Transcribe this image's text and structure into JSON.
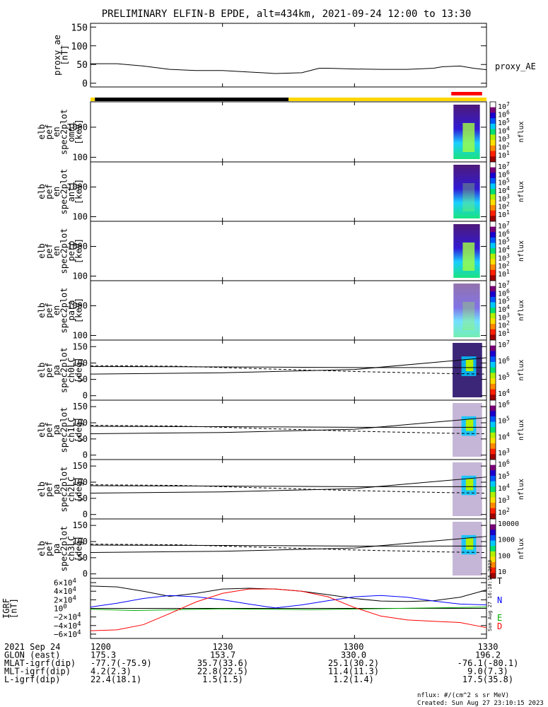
{
  "title": "PRELIMINARY ELFIN-B EPDE, alt=434km, 2021-09-24 12:00 to 13:30",
  "chart_data": {
    "type": "multi-panel",
    "time_range": [
      "1200",
      "1330"
    ],
    "x_tick_labels": [
      "1200",
      "1230",
      "1300",
      "1330"
    ],
    "x_tick_minutes": [
      0,
      30,
      60,
      90
    ],
    "panels": [
      {
        "kind": "line",
        "ylabel": [
          "proxy_ae",
          "[nT]"
        ],
        "ylim": [
          -10,
          160
        ],
        "yticks": [
          0,
          50,
          100,
          150
        ],
        "series": [
          {
            "name": "proxy_AE",
            "color": "#000000",
            "x": [
              0,
              6,
              12,
              18,
              24,
              30,
              36,
              42,
              48,
              52,
              54,
              60,
              66,
              72,
              78,
              80,
              84,
              87,
              90
            ],
            "y": [
              52,
              52,
              46,
              37,
              34,
              34,
              30,
              26,
              28,
              40,
              40,
              38,
              37,
              37,
              40,
              44,
              46,
              40,
              36
            ]
          }
        ]
      },
      {
        "kind": "spec",
        "ylabel": [
          "elb",
          "pef",
          "en",
          "spec2plot",
          "omni",
          "[keV]"
        ],
        "yticks": [
          "1000",
          "100"
        ],
        "cb_ticks": [
          "7",
          "6",
          "5",
          "4",
          "3",
          "2",
          "1"
        ],
        "cb_title": "nflux"
      },
      {
        "kind": "spec",
        "ylabel": [
          "elb",
          "pef",
          "en",
          "spec2plot",
          "anti",
          "[keV]"
        ],
        "yticks": [
          "1000",
          "100"
        ],
        "cb_ticks": [
          "7",
          "6",
          "5",
          "4",
          "3",
          "2",
          "1"
        ],
        "cb_title": "nflux"
      },
      {
        "kind": "spec",
        "ylabel": [
          "elb",
          "pef",
          "en",
          "spec2plot",
          "perp",
          "[keV]"
        ],
        "yticks": [
          "1000",
          "100"
        ],
        "cb_ticks": [
          "7",
          "6",
          "5",
          "4",
          "3",
          "2",
          "1"
        ],
        "cb_title": "nflux"
      },
      {
        "kind": "spec",
        "ylabel": [
          "elb",
          "pef",
          "en",
          "spec2plot",
          "para",
          "[keV]"
        ],
        "yticks": [
          "1000",
          "100"
        ],
        "cb_ticks": [
          "7",
          "6",
          "5",
          "4",
          "3",
          "2",
          "1"
        ],
        "cb_title": "nflux"
      },
      {
        "kind": "pa",
        "ylabel": [
          "elb",
          "pef",
          "pa",
          "spec2plot",
          "ch0LC",
          "[deg]"
        ],
        "yticks": [
          "150",
          "100",
          "50",
          "0"
        ],
        "cb_ticks": [
          "10^7",
          "10^6",
          "10^5",
          "10^4"
        ],
        "cb_title": "nflux"
      },
      {
        "kind": "pa",
        "ylabel": [
          "elb",
          "pef",
          "pa",
          "spec2plot",
          "ch1LC",
          "[deg]"
        ],
        "yticks": [
          "150",
          "100",
          "50",
          "0"
        ],
        "cb_ticks": [
          "10^6",
          "10^5",
          "10^4",
          "10^3"
        ],
        "cb_title": "nflux"
      },
      {
        "kind": "pa",
        "ylabel": [
          "elb",
          "pef",
          "pa",
          "spec2plot",
          "ch2LC",
          "[deg]"
        ],
        "yticks": [
          "150",
          "100",
          "50",
          "0"
        ],
        "cb_ticks": [
          "10^6",
          "10^5",
          "10^4",
          "10^3",
          "10^2"
        ],
        "cb_title": "nflux"
      },
      {
        "kind": "pa",
        "ylabel": [
          "elb",
          "pef",
          "pa",
          "spec2plot",
          "ch3LC",
          "[deg]"
        ],
        "yticks": [
          "150",
          "100",
          "50",
          "0"
        ],
        "cb_ticks": [
          "10000",
          "1000",
          "100",
          "10"
        ],
        "cb_title": "nflux"
      },
      {
        "kind": "line",
        "ylabel": [
          "IGRF",
          "[nT]"
        ],
        "ylim": [
          -70000,
          70000
        ],
        "yticks": [
          "6×10^4",
          "4×10^4",
          "2×10^4",
          "0",
          "−2×10^4",
          "−4×10^4",
          "−6×10^4"
        ],
        "ytick_values": [
          60000,
          40000,
          20000,
          0,
          -20000,
          -40000,
          -60000
        ],
        "series": [
          {
            "name": "T",
            "color": "#000000",
            "x": [
              0,
              6,
              12,
              18,
              24,
              30,
              36,
              42,
              48,
              54,
              60,
              66,
              72,
              78,
              84,
              90
            ],
            "y": [
              52000,
              50000,
              40000,
              28000,
              35000,
              45000,
              47000,
              45000,
              40000,
              32000,
              23000,
              17000,
              16000,
              18000,
              26000,
              43000
            ]
          },
          {
            "name": "N",
            "color": "#0000ff",
            "x": [
              0,
              6,
              12,
              18,
              24,
              30,
              36,
              42,
              48,
              54,
              60,
              66,
              72,
              78,
              84,
              90
            ],
            "y": [
              3000,
              12000,
              23000,
              30000,
              27000,
              20000,
              10000,
              1000,
              8000,
              18000,
              27000,
              30000,
              26000,
              17000,
              10000,
              8000
            ]
          },
          {
            "name": "E",
            "color": "#00aa00",
            "x": [
              0,
              10,
              20,
              30,
              40,
              50,
              60,
              70,
              80,
              90
            ],
            "y": [
              -2000,
              -5000,
              -3000,
              -1000,
              -2000,
              -3000,
              -1500,
              0,
              1500,
              3000
            ]
          },
          {
            "name": "D",
            "color": "#ff0000",
            "x": [
              0,
              6,
              12,
              18,
              24,
              30,
              36,
              42,
              48,
              54,
              60,
              66,
              72,
              78,
              84,
              90
            ],
            "y": [
              -52000,
              -50000,
              -38000,
              -12000,
              15000,
              35000,
              45000,
              45000,
              40000,
              27000,
              2000,
              -18000,
              -27000,
              -30000,
              -33000,
              -45000
            ]
          }
        ],
        "legend": [
          "T",
          "N",
          "E",
          "D"
        ]
      }
    ],
    "orbit_bar": {
      "segments": [
        {
          "from": 0,
          "to": 1,
          "color": "#ffd700"
        },
        {
          "from": 1,
          "to": 45,
          "color": "#000000"
        },
        {
          "from": 45,
          "to": 90,
          "color": "#ffd700"
        }
      ],
      "science_zone": {
        "from": 82,
        "to": 89,
        "color": "#ff0000"
      }
    },
    "colorbar_colors": [
      "#ffffff",
      "#7a007a",
      "#1a00d0",
      "#0055ff",
      "#00c8ff",
      "#00e070",
      "#b0f000",
      "#ffe000",
      "#ff8800",
      "#ff2000",
      "#a00000"
    ]
  },
  "orbit_table": {
    "rows": [
      {
        "label": "2021 Sep 24",
        "values": [
          "1200",
          "1230",
          "1300",
          "1330"
        ]
      },
      {
        "label": "GLON (east)",
        "values": [
          "175.3",
          "153.7",
          "330.0",
          "196.2"
        ]
      },
      {
        "label": "MLAT-igrf(dip)",
        "values": [
          "-77.7(-75.9)",
          "35.7(33.6)",
          "25.1(30.2)",
          "-76.1(-80.1)"
        ]
      },
      {
        "label": "MLT-igrf(dip)",
        "values": [
          "4.2(2.3)",
          "22.8(22.5)",
          "11.4(11.3)",
          "9.0(7.3)"
        ]
      },
      {
        "label": "L-igrf(dip)",
        "values": [
          "22.4(18.1)",
          "1.5(1.5)",
          "1.2(1.4)",
          "17.5(35.8)"
        ]
      }
    ]
  },
  "footer": {
    "units": "nflux: #/(cm^2 s sr MeV)",
    "created": "Created: Sun Aug 27 23:10:15 2023",
    "side_stamp": "Sun Aug 27 16:10:15 2023"
  }
}
